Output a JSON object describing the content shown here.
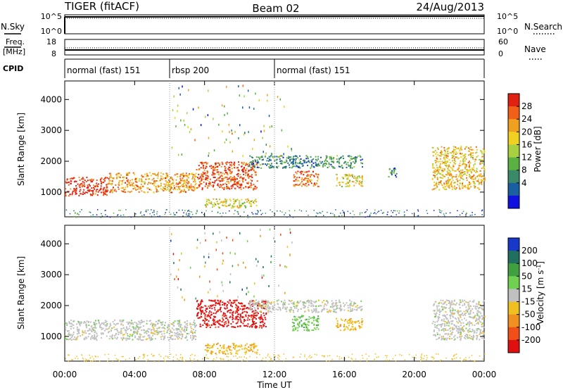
{
  "header": {
    "radar": "TIGER (fitACF)",
    "beam": "Beam 02",
    "date": "24/Aug/2013"
  },
  "top_panels": {
    "nsky_label": "N.Sky",
    "nsky_ticks": [
      "10^5",
      "10^0"
    ],
    "nsearch_label": "N.Search",
    "nsearch_ticks": [
      "10^5",
      "10^0"
    ],
    "freq_label": "Freq.",
    "freq_unit": "[MHz]",
    "freq_ticks": [
      "18",
      "8"
    ],
    "nave_label": "Nave",
    "nave_ticks": [
      "60",
      "0"
    ],
    "cpid_label": "CPID",
    "cpid_segments": [
      {
        "label": "normal (fast) 151",
        "start": 0,
        "end": 6
      },
      {
        "label": "rbsp 200",
        "start": 6,
        "end": 12
      },
      {
        "label": "normal (fast) 151",
        "start": 12,
        "end": 24
      }
    ]
  },
  "chart_data": [
    {
      "type": "heatmap",
      "title": "",
      "xlabel": "Time UT",
      "ylabel": "Slant Range [km]",
      "xlim": [
        0,
        24
      ],
      "ylim": [
        200,
        4600
      ],
      "x_ticks": [
        "00:00",
        "04:00",
        "08:00",
        "12:00",
        "16:00",
        "20:00",
        "00:00"
      ],
      "y_ticks": [
        1000,
        2000,
        3000,
        4000
      ],
      "colorbar": {
        "label": "Power [dB]",
        "ticks": [
          4,
          8,
          12,
          16,
          20,
          24,
          28
        ],
        "colors": [
          "#1010e0",
          "#1a5fa0",
          "#3a8a6a",
          "#5ab040",
          "#a8d040",
          "#f0d020",
          "#f0a020",
          "#f06018",
          "#e02010"
        ]
      },
      "echo_regions": [
        {
          "t_start": 0.0,
          "t_end": 2.5,
          "range_min": 900,
          "range_max": 1500,
          "value": 28
        },
        {
          "t_start": 2.5,
          "t_end": 7.5,
          "range_min": 1000,
          "range_max": 1650,
          "value": 22
        },
        {
          "t_start": 7.5,
          "t_end": 11.0,
          "range_min": 1100,
          "range_max": 2000,
          "value": 26
        },
        {
          "t_start": 8.0,
          "t_end": 11.0,
          "range_min": 500,
          "range_max": 800,
          "value": 18
        },
        {
          "t_start": 10.5,
          "t_end": 17.0,
          "range_min": 1800,
          "range_max": 2200,
          "value": 10
        },
        {
          "t_start": 13.0,
          "t_end": 14.5,
          "range_min": 1200,
          "range_max": 1700,
          "value": 24
        },
        {
          "t_start": 15.5,
          "t_end": 17.0,
          "range_min": 1200,
          "range_max": 1600,
          "value": 18
        },
        {
          "t_start": 18.5,
          "t_end": 19.0,
          "range_min": 1500,
          "range_max": 1800,
          "value": 10
        },
        {
          "t_start": 21.0,
          "t_end": 24.0,
          "range_min": 1100,
          "range_max": 2500,
          "value": 20
        }
      ]
    },
    {
      "type": "heatmap",
      "title": "",
      "xlabel": "Time UT",
      "ylabel": "Slant Range [km]",
      "xlim": [
        0,
        24
      ],
      "ylim": [
        200,
        4600
      ],
      "x_ticks": [
        "00:00",
        "04:00",
        "08:00",
        "12:00",
        "16:00",
        "20:00",
        "00:00"
      ],
      "y_ticks": [
        1000,
        2000,
        3000,
        4000
      ],
      "colorbar": {
        "label": "Velocity [m s^-1]",
        "ticks": [
          200,
          100,
          50,
          15,
          -15,
          -50,
          -100,
          -200
        ],
        "colors": [
          "#1838c8",
          "#207060",
          "#40a040",
          "#70d050",
          "#c0c0c0",
          "#f0c020",
          "#f09020",
          "#f05018",
          "#e01010"
        ]
      },
      "echo_regions": [
        {
          "t_start": 0.0,
          "t_end": 7.5,
          "range_min": 900,
          "range_max": 1550,
          "value": 0
        },
        {
          "t_start": 7.5,
          "t_end": 11.5,
          "range_min": 1300,
          "range_max": 2200,
          "value": -200
        },
        {
          "t_start": 8.0,
          "t_end": 11.0,
          "range_min": 450,
          "range_max": 800,
          "value": -60
        },
        {
          "t_start": 10.5,
          "t_end": 17.0,
          "range_min": 1800,
          "range_max": 2200,
          "value": 0
        },
        {
          "t_start": 13.0,
          "t_end": 14.5,
          "range_min": 1200,
          "range_max": 1700,
          "value": 60
        },
        {
          "t_start": 15.5,
          "t_end": 17.0,
          "range_min": 1200,
          "range_max": 1600,
          "value": -60
        },
        {
          "t_start": 21.0,
          "t_end": 24.0,
          "range_min": 900,
          "range_max": 2200,
          "value": 0
        }
      ]
    }
  ]
}
